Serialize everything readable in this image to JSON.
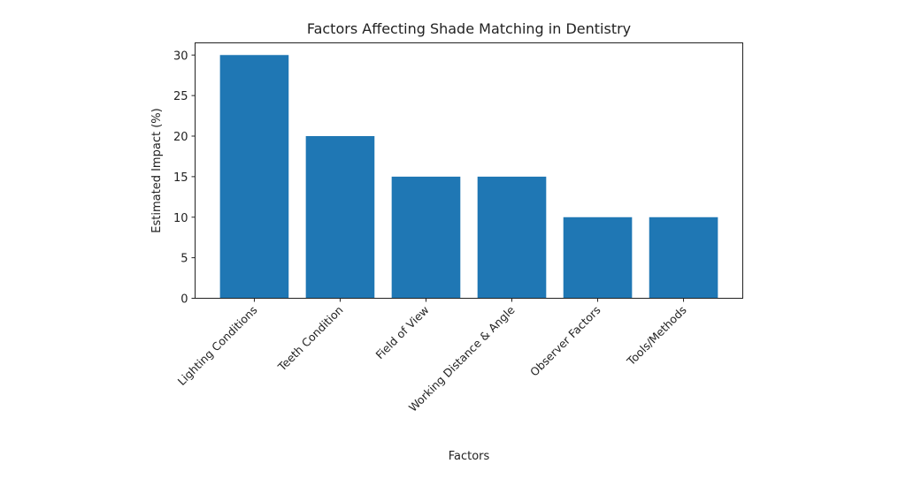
{
  "chart_data": {
    "type": "bar",
    "title": "Factors Affecting Shade Matching in Dentistry",
    "xlabel": "Factors",
    "ylabel": "Estimated Impact (%)",
    "categories": [
      "Lighting Conditions",
      "Teeth Condition",
      "Field of View",
      "Working Distance & Angle",
      "Observer Factors",
      "Tools/Methods"
    ],
    "values": [
      30,
      20,
      15,
      15,
      10,
      10
    ],
    "ylim": [
      0,
      31.5
    ],
    "yticks": [
      0,
      5,
      10,
      15,
      20,
      25,
      30
    ],
    "grid": false,
    "bar_color": "#1f77b4"
  }
}
